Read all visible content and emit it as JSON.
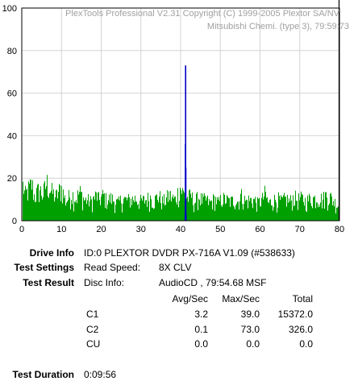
{
  "chart_data": {
    "type": "bar",
    "header_line1": "PlexTools Professional V2.31 Copyright (C) 1999-2005 Plextor SA/NV",
    "header_line2": "Mitsubishi Chemi. (type 3), 79:59:73",
    "xlim": [
      0,
      80
    ],
    "ylim": [
      0,
      100
    ],
    "x_ticks": [
      "0",
      "10",
      "20",
      "30",
      "40",
      "50",
      "60",
      "70",
      "80"
    ],
    "y_ticks": [
      "0",
      "20",
      "40",
      "60",
      "80",
      "100"
    ],
    "grid": true,
    "disc_end_marker_x": 79.9,
    "series": [
      {
        "name": "C1",
        "color": "#00a000",
        "avg": 3.2,
        "max": 39.0
      },
      {
        "name": "C2",
        "color": "#0000c8",
        "points": [
          [
            41.1,
            2
          ],
          [
            41.15,
            36
          ],
          [
            41.2,
            73
          ],
          [
            41.25,
            25
          ],
          [
            41.3,
            3
          ]
        ]
      }
    ],
    "c1_profile": [
      [
        0.3,
        22
      ],
      [
        0.7,
        16
      ],
      [
        1.5,
        19
      ],
      [
        2.5,
        23
      ],
      [
        3.1,
        15
      ],
      [
        4.4,
        20
      ],
      [
        5.2,
        16
      ],
      [
        6.2,
        24
      ],
      [
        6.8,
        21
      ],
      [
        7.5,
        18
      ],
      [
        8.5,
        15
      ],
      [
        9.9,
        21
      ],
      [
        11.0,
        12
      ],
      [
        12.4,
        17
      ],
      [
        13.6,
        14
      ],
      [
        14.5,
        18
      ],
      [
        15.7,
        13
      ],
      [
        16.5,
        13
      ],
      [
        17.3,
        12
      ],
      [
        18.8,
        16
      ],
      [
        19.4,
        13
      ],
      [
        20.5,
        16
      ],
      [
        21.2,
        13
      ],
      [
        22.5,
        14
      ],
      [
        23.5,
        12
      ],
      [
        24.2,
        11
      ],
      [
        25.3,
        14
      ],
      [
        26.1,
        13
      ],
      [
        27.0,
        13
      ],
      [
        28.6,
        14
      ],
      [
        29.4,
        12
      ],
      [
        31.0,
        13
      ],
      [
        32.5,
        15
      ],
      [
        33.1,
        12
      ],
      [
        34.4,
        16
      ],
      [
        35.2,
        12
      ],
      [
        36.1,
        13
      ],
      [
        37.0,
        16
      ],
      [
        38.5,
        13
      ],
      [
        39.8,
        21
      ],
      [
        40.4,
        18
      ],
      [
        41.7,
        14
      ],
      [
        42.6,
        16
      ],
      [
        43.2,
        11
      ],
      [
        44.5,
        15
      ],
      [
        45.3,
        13
      ],
      [
        46.5,
        13
      ],
      [
        47.2,
        11
      ],
      [
        48.6,
        14
      ],
      [
        49.4,
        11
      ],
      [
        50.3,
        14
      ],
      [
        51.5,
        13
      ],
      [
        52.5,
        12
      ],
      [
        53.3,
        13
      ],
      [
        54.4,
        12
      ],
      [
        55.1,
        16
      ],
      [
        56.4,
        12
      ],
      [
        57.0,
        13
      ],
      [
        58.5,
        13
      ],
      [
        59.3,
        11
      ],
      [
        60.4,
        13
      ],
      [
        61.2,
        17
      ],
      [
        62.0,
        11
      ],
      [
        63.5,
        13
      ],
      [
        64.4,
        14
      ],
      [
        65.1,
        12
      ],
      [
        66.6,
        14
      ],
      [
        67.4,
        12
      ],
      [
        68.5,
        15
      ],
      [
        69.3,
        13
      ],
      [
        70.4,
        14
      ],
      [
        71.5,
        12
      ],
      [
        72.5,
        14
      ],
      [
        73.6,
        14
      ],
      [
        74.8,
        15
      ],
      [
        75.6,
        13
      ],
      [
        76.5,
        16
      ],
      [
        77.5,
        15
      ],
      [
        78.6,
        12
      ],
      [
        79.3,
        10
      ]
    ]
  },
  "info": {
    "drive_info_label": "Drive Info",
    "drive_info_value": "ID:0 PLEXTOR DVDR PX-716A V1.09 (#538633)",
    "test_settings_label": "Test Settings",
    "read_speed_label": "Read Speed:",
    "read_speed_value": "8X CLV",
    "test_result_label": "Test Result",
    "disc_info_label": "Disc Info:",
    "disc_info_value": "AudioCD , 79:54.68 MSF",
    "col_avg": "Avg/Sec",
    "col_max": "Max/Sec",
    "col_total": "Total",
    "rows": [
      {
        "name": "C1",
        "avg": "3.2",
        "max": "39.0",
        "total": "15372.0"
      },
      {
        "name": "C2",
        "avg": "0.1",
        "max": "73.0",
        "total": "326.0"
      },
      {
        "name": "CU",
        "avg": "0.0",
        "max": "0.0",
        "total": "0.0"
      }
    ],
    "test_duration_label": "Test Duration",
    "test_duration_value": "0:09:56"
  }
}
